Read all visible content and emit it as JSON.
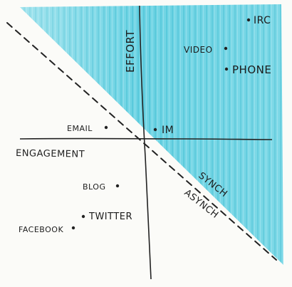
{
  "diagram": {
    "colors": {
      "paper": "#fbfbf8",
      "ink": "#1d1d1d",
      "highlighter": "#32c3db",
      "highlighter_light": "#7fd9e8"
    },
    "axes": {
      "vertical_label": "EFFORT",
      "horizontal_label": "ENGAGEMENT"
    },
    "divider_labels": {
      "upper": "SYNCH",
      "lower": "ASYNCH"
    },
    "points": [
      {
        "id": "irc",
        "label": "IRC"
      },
      {
        "id": "video",
        "label": "VIDEO"
      },
      {
        "id": "phone",
        "label": "PHONE"
      },
      {
        "id": "email",
        "label": "EMAIL"
      },
      {
        "id": "im",
        "label": "IM"
      },
      {
        "id": "blog",
        "label": "BLOG"
      },
      {
        "id": "twitter",
        "label": "TWITTER"
      },
      {
        "id": "facebook",
        "label": "FACEBOOK"
      }
    ]
  }
}
